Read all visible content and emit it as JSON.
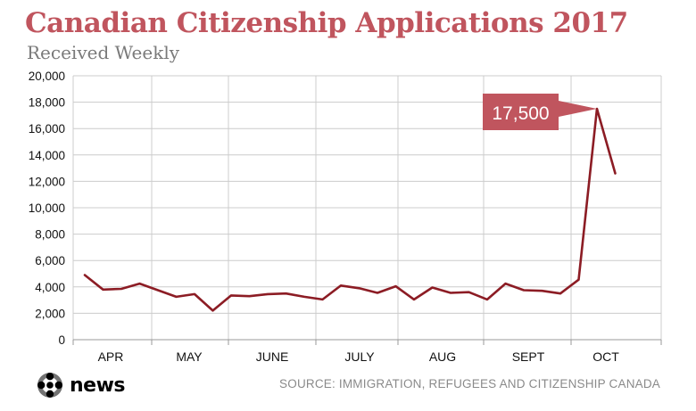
{
  "colors": {
    "title": "#c0555e",
    "subtitle": "#7a7a7a",
    "line": "#8c1c24",
    "callout": "#c0555e",
    "grid": "#cccccc",
    "axis_text": "#111111"
  },
  "logo": {
    "text": "news",
    "icon": "cbc-gem-icon"
  },
  "source": "SOURCE: IMMIGRATION, REFUGEES AND CITIZENSHIP CANADA",
  "chart_data": {
    "type": "line",
    "title": "Canadian Citizenship Applications 2017",
    "subtitle": "Received Weekly",
    "xlabel": "",
    "ylabel": "",
    "ylim": [
      0,
      20000
    ],
    "yticks": [
      0,
      2000,
      4000,
      6000,
      8000,
      10000,
      12000,
      14000,
      16000,
      18000,
      20000
    ],
    "ytick_labels": [
      "0",
      "2,000",
      "4,000",
      "6,000",
      "8,000",
      "10,000",
      "12,000",
      "14,000",
      "16,000",
      "18,000",
      "20,000"
    ],
    "months": [
      "APR",
      "MAY",
      "JUNE",
      "JULY",
      "AUG",
      "SEPT",
      "OCT"
    ],
    "grid": true,
    "legend": "none",
    "series": [
      {
        "values": [
          4900,
          3800,
          3850,
          4250,
          3750,
          3250,
          3450,
          2200,
          3350,
          3300,
          3450,
          3500,
          3250,
          3050,
          4100,
          3900,
          3550,
          4050,
          3050,
          3950,
          3550,
          3600,
          3050,
          4250,
          3750,
          3700,
          3500,
          4550,
          17500,
          12600
        ]
      }
    ],
    "annotation": {
      "label": "17,500",
      "point_index": 28,
      "value": 17500
    }
  }
}
